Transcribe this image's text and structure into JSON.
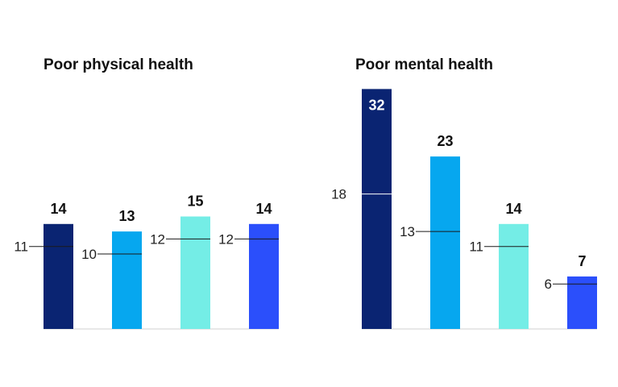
{
  "chart_data": [
    {
      "type": "bar",
      "title": "Poor physical health",
      "values": [
        14,
        13,
        15,
        14
      ],
      "reference_values": [
        11,
        10,
        12,
        12
      ],
      "ylim": [
        0,
        32
      ],
      "colors": [
        "#0a2472",
        "#06a7ef",
        "#74ede6",
        "#2b4ffb"
      ]
    },
    {
      "type": "bar",
      "title": "Poor mental health",
      "values": [
        32,
        23,
        14,
        7
      ],
      "reference_values": [
        18,
        13,
        11,
        6
      ],
      "ylim": [
        0,
        32
      ],
      "colors": [
        "#0a2472",
        "#06a7ef",
        "#74ede6",
        "#2b4ffb"
      ]
    }
  ]
}
